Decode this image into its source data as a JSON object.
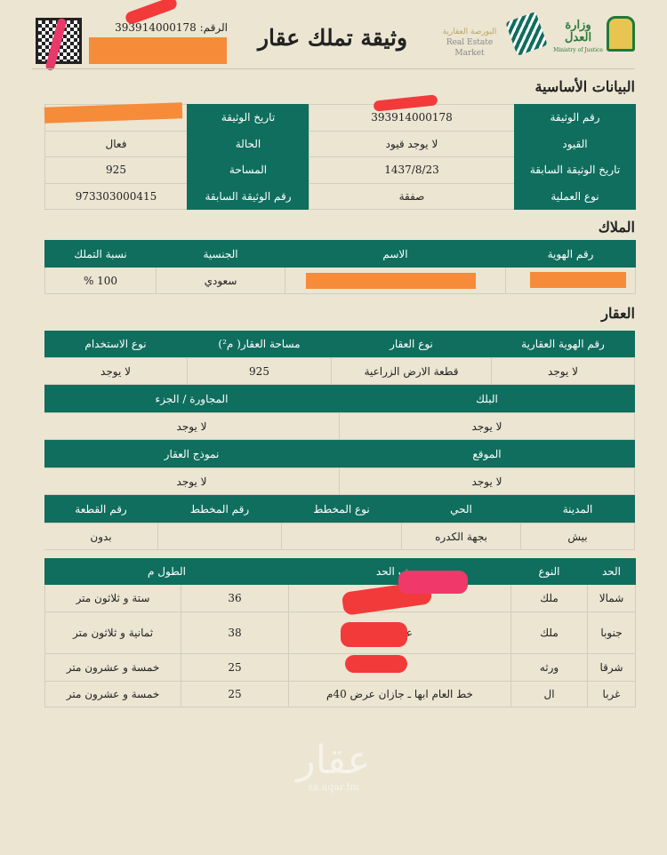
{
  "header": {
    "title": "وثيقة تملك عقار",
    "number_label": "الرقم:",
    "number": "393914000178",
    "logo_market_ar": "البورصة العقارية",
    "logo_market_en": "Real Estate Market",
    "logo_moj_ar": "وزارة العدل",
    "logo_moj_en": "Ministry of Justice"
  },
  "watermark": {
    "ar": "عقار",
    "url": "sa.aqar.fm"
  },
  "basic": {
    "title": "البيانات الأساسية",
    "rows": [
      {
        "l1": "رقم الوثيقة",
        "v1": "393914000178",
        "l2": "تاريخ الوثيقة",
        "v2": ""
      },
      {
        "l1": "القيود",
        "v1": "لا يوجد قيود",
        "l2": "الحالة",
        "v2": "فعال"
      },
      {
        "l1": "تاريخ الوثيقة السابقة",
        "v1": "1437/8/23",
        "l2": "المساحة",
        "v2": "925"
      },
      {
        "l1": "نوع العملية",
        "v1": "صفقة",
        "l2": "رقم الوثيقة السابقة",
        "v2": "973303000415"
      }
    ]
  },
  "owners": {
    "title": "الملاك",
    "headers": [
      "رقم الهوية",
      "الاسم",
      "الجنسية",
      "نسبة التملك"
    ],
    "row": [
      "",
      "",
      "سعودي",
      "100 %"
    ]
  },
  "property": {
    "title": "العقار",
    "h1": [
      "رقم الهوية العقارية",
      "نوع العقار",
      "مساحة العقار( م²)",
      "نوع الاستخدام"
    ],
    "r1": [
      "لا يوجد",
      "قطعة الارض الزراعية",
      "925",
      "لا يوجد"
    ],
    "h2": [
      "البلك",
      "المجاورة / الجزء"
    ],
    "r2": [
      "لا يوجد",
      "لا يوجد"
    ],
    "h3": [
      "الموقع",
      "نموذج العقار"
    ],
    "r3": [
      "لا يوجد",
      "لا يوجد"
    ],
    "h4": [
      "المدينة",
      "الحي",
      "نوع المخطط",
      "رقم المخطط",
      "رقم القطعة"
    ],
    "r4": [
      "بيش",
      "بجهة الكدره",
      "",
      "",
      "بدون"
    ]
  },
  "borders": {
    "headers": [
      "الحد",
      "النوع",
      "وصف الحد",
      "الطول م"
    ],
    "rows": [
      [
        "شمالا",
        "ملك",
        "",
        "36",
        "ستة و ثلاثون متر"
      ],
      [
        "جنوبا",
        "ملك",
        "عبدال",
        "38",
        "ثمانية و ثلاثون متر"
      ],
      [
        "شرقا",
        "ورثه",
        "",
        "25",
        "خمسة و عشرون متر"
      ],
      [
        "غربا",
        "ال",
        "خط العام ابها ـ جازان عرض 40م",
        "25",
        "خمسة و عشرون متر"
      ]
    ]
  },
  "colors": {
    "primary": "#0f6e5e",
    "background": "#ebe5d2"
  }
}
